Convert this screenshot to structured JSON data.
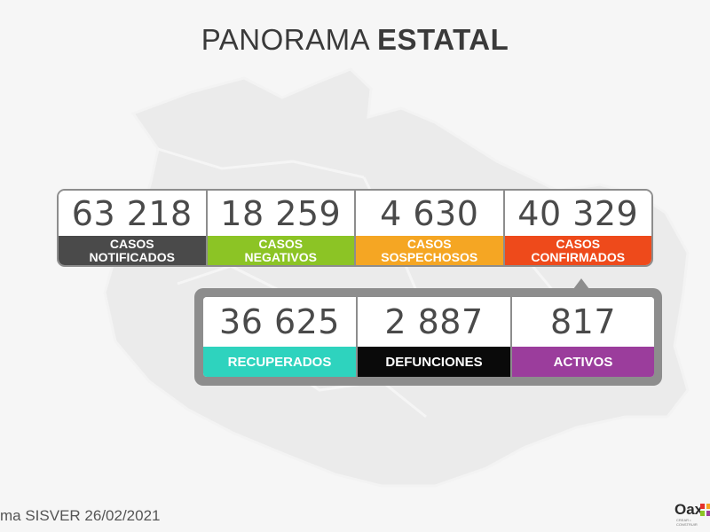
{
  "title": {
    "light": "PANORAMA ",
    "bold": "ESTATAL"
  },
  "top_stats": [
    {
      "value": "63 218",
      "label": "CASOS\nNOTIFICADOS",
      "color": "#4a4a4a"
    },
    {
      "value": "18 259",
      "label": "CASOS\nNEGATIVOS",
      "color": "#8cc425"
    },
    {
      "value": "4 630",
      "label": "CASOS\nSOSPECHOSOS",
      "color": "#f5a623"
    },
    {
      "value": "40 329",
      "label": "CASOS\nCONFIRMADOS",
      "color": "#ee4a1b"
    }
  ],
  "bottom_stats": [
    {
      "value": "36 625",
      "label": "RECUPERADOS",
      "color": "#2ed3be"
    },
    {
      "value": "2 887",
      "label": "DEFUNCIONES",
      "color": "#0a0a0a"
    },
    {
      "value": "817",
      "label": "ACTIVOS",
      "color": "#9b3d9c"
    }
  ],
  "footer": {
    "prefix": "ma SISVER ",
    "date": "26/02/2021"
  },
  "logo": {
    "text": "Oax",
    "tagline": "CREAR • CONSTRUIR",
    "icon": "oaxaca-x-logo-icon"
  }
}
